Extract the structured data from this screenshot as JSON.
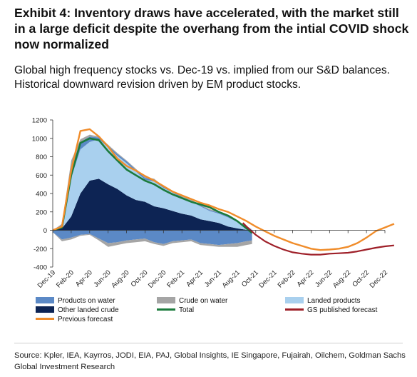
{
  "title": "Exhibit 4: Inventory draws have accelerated, with the market still in a large deficit despite the overhang from the intial COVID shock now normalized",
  "subtitle": "Global high frequency stocks vs. Dec-19 vs. implied from our S&D balances. Historical downward revision driven by EM product stocks.",
  "source": "Source: Kpler, IEA, Kayrros, JODI, EIA, PAJ, Global Insights, IE Singapore, Fujairah, Oilchem, Goldman Sachs Global Investment Research",
  "chart_data": {
    "type": "area",
    "ylim": [
      -400,
      1200
    ],
    "yticks": [
      -400,
      -200,
      0,
      200,
      400,
      600,
      800,
      1000,
      1200
    ],
    "x_labels": [
      "Dec-19",
      "Feb-20",
      "Apr-20",
      "Jun-20",
      "Aug-20",
      "Oct-20",
      "Dec-20",
      "Feb-21",
      "Apr-21",
      "Jun-21",
      "Aug-21",
      "Oct-21",
      "Dec-21",
      "Feb-22",
      "Apr-22",
      "Jun-22",
      "Aug-22",
      "Oct-22",
      "Dec-22"
    ],
    "stacked_positive": {
      "x": [
        0,
        0.5,
        1,
        1.5,
        2,
        2.5,
        3,
        3.5,
        4,
        4.5,
        5,
        5.5,
        6,
        6.5,
        7,
        7.5,
        8,
        8.5,
        9,
        9.5,
        10,
        10.5,
        10.8
      ],
      "other_landed_crude": [
        0,
        20,
        150,
        400,
        540,
        560,
        500,
        450,
        380,
        330,
        310,
        260,
        240,
        210,
        180,
        160,
        120,
        100,
        80,
        40,
        20,
        5,
        0
      ],
      "landed_products": [
        0,
        30,
        420,
        480,
        420,
        430,
        400,
        360,
        350,
        310,
        240,
        270,
        220,
        200,
        170,
        150,
        140,
        110,
        100,
        100,
        70,
        30,
        10
      ],
      "products_on_water": [
        0,
        10,
        120,
        80,
        60,
        20,
        20,
        20,
        20,
        20,
        20,
        20,
        10,
        10,
        10,
        10,
        10,
        10,
        10,
        10,
        10,
        5,
        0
      ],
      "crude_on_water": [
        0,
        10,
        70,
        30,
        20,
        10,
        10,
        10,
        10,
        10,
        10,
        10,
        10,
        10,
        10,
        10,
        10,
        10,
        10,
        10,
        5,
        5,
        0
      ]
    },
    "stacked_negative": {
      "x": [
        0,
        0.5,
        1,
        1.5,
        2,
        2.5,
        3,
        3.5,
        4,
        4.5,
        5,
        5.5,
        6,
        6.5,
        7,
        7.5,
        8,
        8.5,
        9,
        9.5,
        10,
        10.5,
        10.8
      ],
      "products_on_water": [
        -20,
        -100,
        -80,
        -50,
        -40,
        -90,
        -140,
        -130,
        -110,
        -100,
        -90,
        -130,
        -150,
        -120,
        -110,
        -100,
        -140,
        -150,
        -160,
        -150,
        -140,
        -120,
        -110
      ],
      "crude_on_water": [
        0,
        -20,
        -20,
        -10,
        -10,
        -20,
        -40,
        -30,
        -30,
        -30,
        -30,
        -20,
        -20,
        -20,
        -20,
        -20,
        -20,
        -20,
        -20,
        -30,
        -40,
        -40,
        -40
      ]
    },
    "series": [
      {
        "name": "Total",
        "x": [
          0,
          0.5,
          1,
          1.5,
          2,
          2.5,
          3,
          3.5,
          4,
          4.5,
          5,
          5.5,
          6,
          6.5,
          7,
          7.5,
          8,
          8.5,
          9,
          9.5,
          10,
          10.5,
          10.8
        ],
        "values": [
          0,
          30,
          600,
          950,
          1000,
          980,
          860,
          760,
          660,
          600,
          540,
          500,
          440,
          390,
          350,
          310,
          280,
          250,
          200,
          160,
          100,
          20,
          -30
        ]
      },
      {
        "name": "Previous forecast",
        "x": [
          0,
          0.5,
          1,
          1.5,
          2,
          2.5,
          3,
          3.5,
          4,
          4.5,
          5,
          5.5,
          6,
          6.5,
          7,
          7.5,
          8,
          8.5,
          9,
          9.5,
          10,
          10.5,
          11,
          11.5,
          12,
          12.5,
          13,
          13.5,
          14,
          14.5,
          15,
          15.5,
          16,
          16.5,
          17,
          17.5,
          18,
          18.5
        ],
        "values": [
          0,
          40,
          650,
          1080,
          1100,
          1020,
          910,
          780,
          700,
          650,
          590,
          540,
          480,
          420,
          380,
          340,
          300,
          270,
          230,
          200,
          150,
          100,
          40,
          -10,
          -60,
          -100,
          -140,
          -170,
          -200,
          -215,
          -210,
          -200,
          -180,
          -140,
          -80,
          -10,
          30,
          70
        ]
      },
      {
        "name": "GS published forecast",
        "x": [
          10.3,
          10.5,
          11,
          11.5,
          12,
          12.5,
          13,
          13.5,
          14,
          14.5,
          15,
          15.5,
          16,
          16.5,
          17,
          17.5,
          18,
          18.5
        ],
        "values": [
          80,
          40,
          -50,
          -120,
          -170,
          -210,
          -240,
          -255,
          -265,
          -265,
          -255,
          -250,
          -245,
          -230,
          -210,
          -190,
          -175,
          -165
        ]
      }
    ],
    "colors": {
      "other_landed_crude": "#0d2454",
      "landed_products": "#a9d0ee",
      "products_on_water": "#5b89c6",
      "crude_on_water": "#a5a5a5",
      "total": "#1b7a3c",
      "gs_published_forecast": "#9e1f28",
      "previous_forecast": "#f08c2a"
    },
    "legend": [
      {
        "key": "products_on_water",
        "label": "Products on water",
        "kind": "area"
      },
      {
        "key": "crude_on_water",
        "label": "Crude on water",
        "kind": "area"
      },
      {
        "key": "landed_products",
        "label": "Landed products",
        "kind": "area"
      },
      {
        "key": "other_landed_crude",
        "label": "Other landed crude",
        "kind": "area"
      },
      {
        "key": "total",
        "label": "Total",
        "kind": "line"
      },
      {
        "key": "gs_published_forecast",
        "label": "GS published forecast",
        "kind": "line"
      },
      {
        "key": "previous_forecast",
        "label": "Previous forecast",
        "kind": "line"
      }
    ],
    "legend_position": "bottom"
  }
}
